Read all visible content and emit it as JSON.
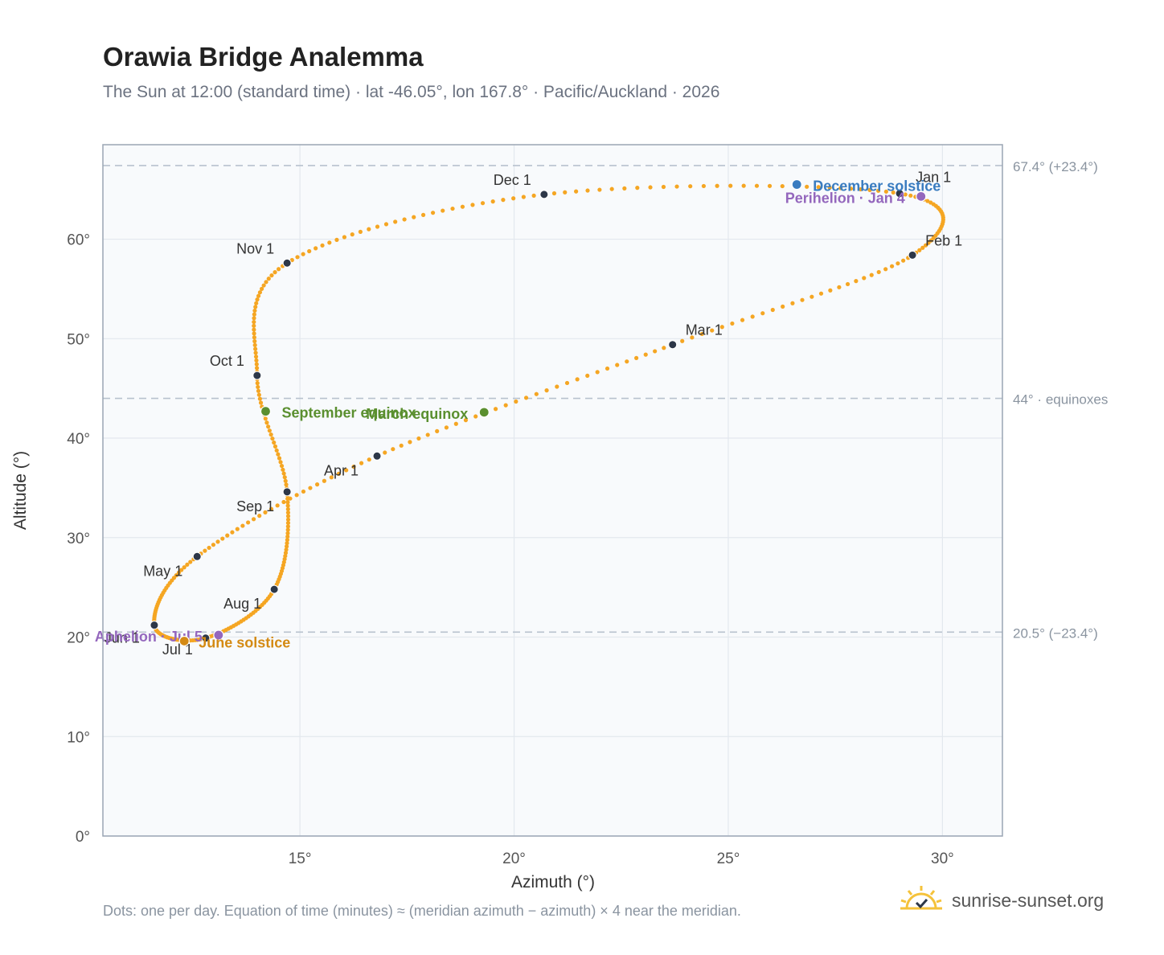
{
  "header": {
    "title": "Orawia Bridge Analemma",
    "subtitle": "The Sun at 12:00 (standard time) · lat -46.05°, lon 167.8° · Pacific/Auckland · 2026"
  },
  "footer": {
    "note": "Dots: one per day. Equation of time (minutes) ≈ (meridian azimuth − azimuth) × 4 near the meridian.",
    "brand": "sunrise-sunset.org"
  },
  "colors": {
    "path": "#f5a623",
    "month_marker": "#2d3748",
    "equinox": "#5a8f2f",
    "june_solstice": "#d48a14",
    "december_solstice": "#3a7cc0",
    "perihelion_aphelion": "#9467bd",
    "reference_line": "#b8c2ce",
    "grid": "#e3e8ee",
    "plot_bg": "#f8fafc",
    "frame": "#9aa5b4"
  },
  "chart_data": {
    "type": "scatter",
    "xlabel": "Azimuth (°)",
    "ylabel": "Altitude (°)",
    "xlim": [
      10.4,
      31.4
    ],
    "ylim": [
      0,
      69.5
    ],
    "x_ticks": [
      15,
      20,
      25,
      30
    ],
    "x_tick_labels": [
      "15°",
      "20°",
      "25°",
      "30°"
    ],
    "y_ticks": [
      0,
      10,
      20,
      30,
      40,
      50,
      60
    ],
    "y_tick_labels": [
      "0°",
      "10°",
      "20°",
      "30°",
      "40°",
      "50°",
      "60°"
    ],
    "grid": true,
    "reference_lines": [
      {
        "y": 67.4,
        "label": "67.4° (+23.4°)"
      },
      {
        "y": 44.0,
        "label": "44° · equinoxes"
      },
      {
        "y": 20.5,
        "label": "20.5° (−23.4°)"
      }
    ],
    "month_markers": [
      {
        "label": "Jan 1",
        "x": 29.0,
        "y": 64.6
      },
      {
        "label": "Feb 1",
        "x": 29.3,
        "y": 58.4
      },
      {
        "label": "Mar 1",
        "x": 23.7,
        "y": 49.4
      },
      {
        "label": "Apr 1",
        "x": 16.8,
        "y": 38.2
      },
      {
        "label": "May 1",
        "x": 12.6,
        "y": 28.1
      },
      {
        "label": "Jun 1",
        "x": 11.6,
        "y": 21.2
      },
      {
        "label": "Jul 1",
        "x": 12.8,
        "y": 19.9
      },
      {
        "label": "Aug 1",
        "x": 14.4,
        "y": 24.8
      },
      {
        "label": "Sep 1",
        "x": 14.7,
        "y": 34.6
      },
      {
        "label": "Oct 1",
        "x": 14.0,
        "y": 46.3
      },
      {
        "label": "Nov 1",
        "x": 14.7,
        "y": 57.6
      },
      {
        "label": "Dec 1",
        "x": 20.7,
        "y": 64.5
      }
    ],
    "events": [
      {
        "label": "December solstice",
        "x": 26.6,
        "y": 65.5,
        "color_key": "december_solstice"
      },
      {
        "label": "Perihelion · Jan 4",
        "x": 29.5,
        "y": 64.3,
        "color_key": "perihelion_aphelion"
      },
      {
        "label": "September equinox",
        "x": 14.2,
        "y": 42.7,
        "color_key": "equinox"
      },
      {
        "label": "March equinox",
        "x": 19.3,
        "y": 42.6,
        "color_key": "equinox"
      },
      {
        "label": "Aphelion · Jul 5",
        "x": 13.1,
        "y": 20.2,
        "color_key": "perihelion_aphelion"
      },
      {
        "label": "June solstice",
        "x": 12.3,
        "y": 19.6,
        "color_key": "june_solstice"
      }
    ],
    "note": "Dots: one per day"
  }
}
